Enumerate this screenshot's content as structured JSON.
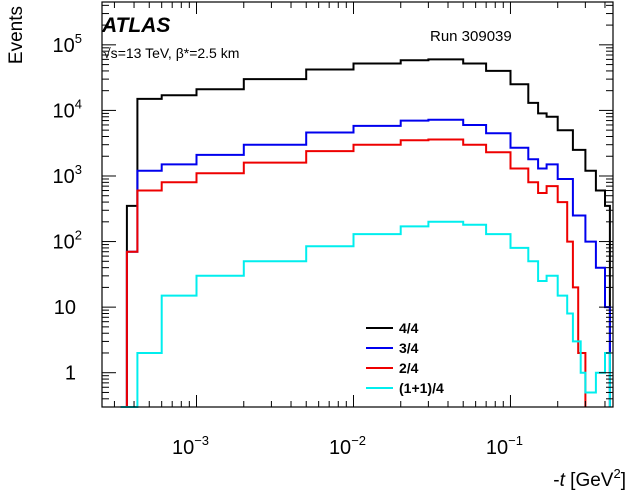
{
  "chart_data": {
    "type": "line",
    "step": true,
    "xlabel_pre": "-",
    "xlabel_var": "t",
    "xlabel_unit": " [GeV",
    "xlabel_exp": "2",
    "xlabel_close": "]",
    "ylabel": "Events",
    "xscale": "log",
    "yscale": "log",
    "xlim": [
      0.00025,
      0.45
    ],
    "ylim": [
      0.3,
      450000
    ],
    "x_ticks": [
      {
        "value": 0.001,
        "base": "10",
        "exp": "−3"
      },
      {
        "value": 0.01,
        "base": "10",
        "exp": "−2"
      },
      {
        "value": 0.1,
        "base": "10",
        "exp": "−1"
      }
    ],
    "y_ticks": [
      {
        "value": 1,
        "base": "1",
        "exp": ""
      },
      {
        "value": 10,
        "base": "10",
        "exp": ""
      },
      {
        "value": 100,
        "base": "10",
        "exp": "2"
      },
      {
        "value": 1000,
        "base": "10",
        "exp": "3"
      },
      {
        "value": 10000,
        "base": "10",
        "exp": "4"
      },
      {
        "value": 100000,
        "base": "10",
        "exp": "5"
      }
    ],
    "experiment": "ATLAS",
    "energy_sqrt": "√s",
    "energy_rest": "=13 TeV, β*=2.5 km",
    "run_label": "Run 309039",
    "legend_position": "bottom-center",
    "series": [
      {
        "name": "4/4",
        "color": "#000000",
        "x": [
          0.00033,
          0.00036,
          0.00042,
          0.0006,
          0.001,
          0.002,
          0.005,
          0.01,
          0.02,
          0.03,
          0.05,
          0.07,
          0.1,
          0.13,
          0.15,
          0.17,
          0.2,
          0.25,
          0.3,
          0.35,
          0.4,
          0.43
        ],
        "y": [
          0.3,
          350,
          15000,
          17000,
          21000,
          30000,
          42000,
          52000,
          58000,
          60000,
          52000,
          40000,
          25000,
          13000,
          9000,
          8000,
          5000,
          2500,
          1200,
          600,
          350,
          0.3
        ]
      },
      {
        "name": "3/4",
        "color": "#0000ee",
        "x": [
          0.00033,
          0.00036,
          0.00042,
          0.0006,
          0.001,
          0.002,
          0.005,
          0.01,
          0.02,
          0.03,
          0.05,
          0.07,
          0.1,
          0.13,
          0.15,
          0.17,
          0.2,
          0.25,
          0.3,
          0.35,
          0.4,
          0.43
        ],
        "y": [
          0.3,
          70,
          1200,
          1500,
          2100,
          3000,
          4600,
          5800,
          7000,
          7200,
          6000,
          4500,
          2700,
          1800,
          1300,
          1500,
          900,
          250,
          100,
          40,
          10,
          0.3
        ]
      },
      {
        "name": "2/4",
        "color": "#ee0000",
        "x": [
          0.00033,
          0.00036,
          0.00042,
          0.0006,
          0.001,
          0.002,
          0.005,
          0.01,
          0.02,
          0.03,
          0.05,
          0.07,
          0.1,
          0.13,
          0.15,
          0.17,
          0.2,
          0.23,
          0.25,
          0.27,
          0.3
        ],
        "y": [
          0.3,
          70,
          600,
          800,
          1100,
          1600,
          2400,
          3000,
          3500,
          3600,
          3000,
          2300,
          1300,
          800,
          550,
          700,
          400,
          100,
          20,
          2,
          0.3
        ]
      },
      {
        "name": "(1+1)/4",
        "color": "#00eeee",
        "x": [
          0.00033,
          0.00042,
          0.0006,
          0.001,
          0.002,
          0.005,
          0.01,
          0.02,
          0.03,
          0.05,
          0.07,
          0.1,
          0.13,
          0.15,
          0.17,
          0.2,
          0.23,
          0.25,
          0.28,
          0.3,
          0.35,
          0.4,
          0.43
        ],
        "y": [
          0.3,
          2,
          15,
          30,
          50,
          85,
          130,
          170,
          200,
          180,
          130,
          80,
          50,
          25,
          30,
          15,
          8,
          3,
          1,
          0.5,
          1,
          2,
          0.3
        ]
      }
    ]
  }
}
